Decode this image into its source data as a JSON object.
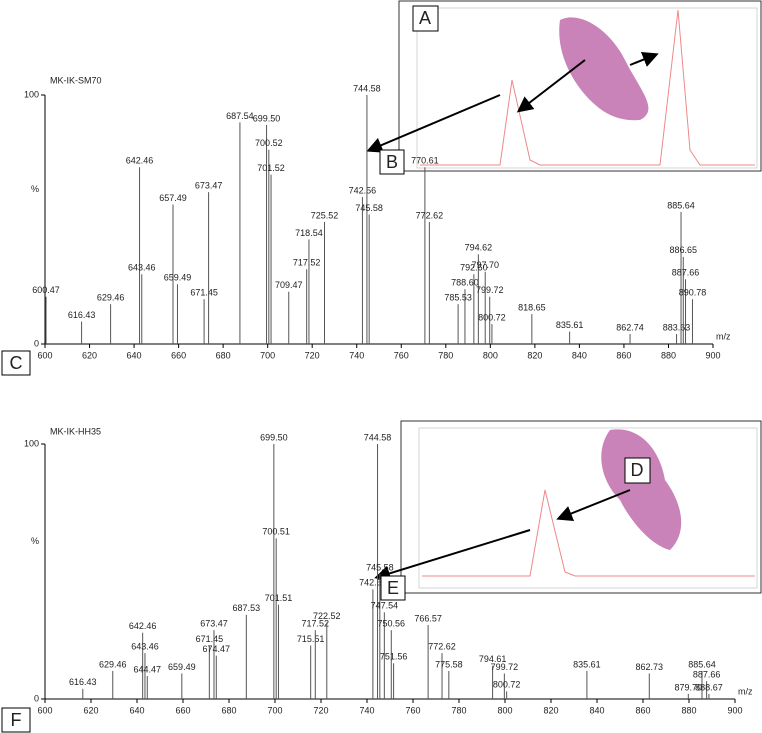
{
  "chart_data": [
    {
      "type": "stem",
      "title": "MK-IK-SM70",
      "panel_label": "C",
      "inset_labels": [
        "A",
        "B"
      ],
      "x": [
        600.47,
        616.43,
        629.46,
        642.46,
        643.46,
        657.49,
        659.49,
        671.45,
        673.47,
        687.54,
        699.5,
        700.52,
        701.52,
        709.47,
        717.52,
        718.54,
        725.52,
        742.56,
        744.58,
        745.58,
        770.61,
        772.62,
        785.53,
        788.6,
        792.6,
        794.62,
        797.7,
        799.72,
        800.72,
        818.65,
        835.61,
        862.74,
        883.63,
        885.64,
        886.65,
        887.66,
        890.78
      ],
      "x_labels": [
        "600.47",
        "616.43",
        "629.46",
        "642.46",
        "643.46",
        "657.49",
        "659.49",
        "671.45",
        "673.47",
        "687.54",
        "699.50",
        "700.52",
        "701.52",
        "709.47",
        "717.52",
        "718.54",
        "725.52",
        "742.56",
        "744.58",
        "745.58",
        "770.61",
        "772.62",
        "785.53",
        "788.60",
        "792.60",
        "794.62",
        "797.70",
        "799.72",
        "800.72",
        "818.65",
        "835.61",
        "862.74",
        "883.63",
        "885.64",
        "886.65",
        "887.66",
        "890.78"
      ],
      "values": [
        19,
        9,
        16,
        71,
        28,
        56,
        24,
        18,
        61,
        89,
        88,
        78,
        68,
        21,
        30,
        42,
        49,
        59,
        100,
        52,
        71,
        49,
        16,
        22,
        28,
        36,
        29,
        19,
        8,
        12,
        5,
        4,
        4,
        53,
        35,
        26,
        18
      ],
      "xlim": [
        600,
        900
      ],
      "xticks": [
        600,
        620,
        640,
        660,
        680,
        700,
        720,
        740,
        760,
        780,
        800,
        820,
        840,
        860,
        880,
        900
      ],
      "ylim": [
        0,
        100
      ],
      "yticks": [
        0,
        100
      ],
      "xlabel": "m/z",
      "ylabel": "%",
      "color": "#555555"
    },
    {
      "type": "stem",
      "title": "MK-IK-HH35",
      "panel_label": "F",
      "inset_labels": [
        "D",
        "E"
      ],
      "x": [
        616.43,
        629.46,
        642.46,
        643.46,
        644.47,
        659.49,
        671.45,
        673.47,
        674.47,
        687.53,
        699.5,
        700.51,
        701.51,
        715.51,
        717.52,
        722.52,
        742.56,
        744.58,
        745.58,
        747.54,
        750.56,
        751.56,
        766.57,
        772.62,
        775.58,
        794.61,
        799.72,
        800.72,
        835.61,
        862.73,
        879.7,
        885.64,
        887.66,
        888.67
      ],
      "x_labels": [
        "616.43",
        "629.46",
        "642.46",
        "643.46",
        "644.47",
        "659.49",
        "671.45",
        "673.47",
        "674.47",
        "687.53",
        "699.50",
        "700.51",
        "701.51",
        "715.51",
        "717.52",
        "722.52",
        "742.56",
        "744.58",
        "745.58",
        "747.54",
        "750.56",
        "751.56",
        "766.57",
        "772.62",
        "775.58",
        "794.61",
        "799.72",
        "800.72",
        "835.61",
        "862.73",
        "879.70",
        "885.64",
        "887.66",
        "888.67"
      ],
      "values": [
        4,
        11,
        26,
        18,
        9,
        10,
        21,
        27,
        17,
        33,
        100,
        63,
        37,
        21,
        27,
        30,
        43,
        100,
        49,
        34,
        27,
        14,
        29,
        18,
        11,
        13,
        10,
        3,
        11,
        10,
        2,
        11,
        7,
        2
      ],
      "xlim": [
        600,
        900
      ],
      "xticks": [
        600,
        620,
        640,
        660,
        680,
        700,
        720,
        740,
        760,
        780,
        800,
        820,
        840,
        860,
        880,
        900
      ],
      "ylim": [
        0,
        100
      ],
      "yticks": [
        0,
        100
      ],
      "xlabel": "m/z",
      "ylabel": "%",
      "color": "#555555"
    }
  ]
}
